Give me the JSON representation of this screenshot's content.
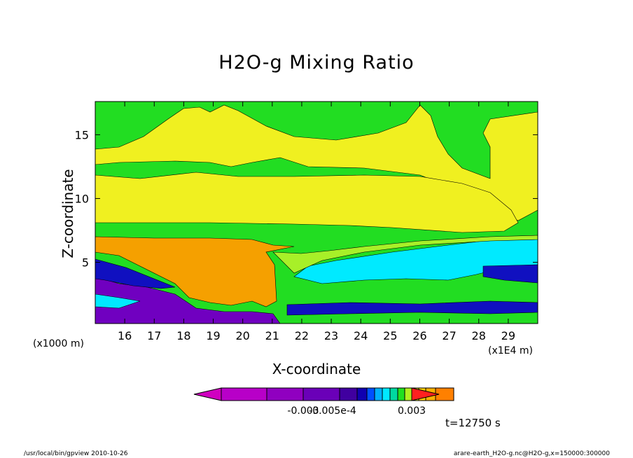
{
  "chart_data": {
    "type": "heatmap",
    "title": "H2O-g Mixing Ratio",
    "xlabel": "X-coordinate",
    "ylabel": "Z-coordinate",
    "x_units_left": "(x1000 m)",
    "x_units_right": "(x1E4 m)",
    "x_ticks": [
      "16",
      "17",
      "18",
      "19",
      "20",
      "21",
      "22",
      "23",
      "24",
      "25",
      "26",
      "27",
      "28",
      "29"
    ],
    "x_tick_values": [
      16,
      17,
      18,
      19,
      20,
      21,
      22,
      23,
      24,
      25,
      26,
      27,
      28,
      29
    ],
    "y_ticks": [
      "5",
      "10",
      "15"
    ],
    "y_tick_values": [
      5,
      10,
      15
    ],
    "xlim": [
      15.0,
      30.0
    ],
    "ylim": [
      0.2,
      17.6
    ],
    "time_label": "t=12750 s",
    "colorbar": {
      "tick_labels": [
        "-0.003",
        "-0.005e-4",
        "0.003"
      ],
      "colors": [
        "#d000c0",
        "#b800c8",
        "#9000c0",
        "#6a00b8",
        "#4000a0",
        "#1000b0",
        "#0050ff",
        "#00b0ff",
        "#00e8ff",
        "#00d8a0",
        "#20e020",
        "#b0f020",
        "#f0f020",
        "#ffd000",
        "#ffb000",
        "#ff8000",
        "#ff2020"
      ]
    },
    "regions": [
      {
        "name": "background",
        "color": "#22dd22"
      },
      {
        "name": "upper-band",
        "color": "#f0f020"
      },
      {
        "name": "mid-band",
        "color": "#f0f020"
      },
      {
        "name": "orange",
        "color": "#f5a000"
      },
      {
        "name": "cyan",
        "color": "#00eaff"
      },
      {
        "name": "light-green",
        "color": "#a8f028"
      },
      {
        "name": "purple",
        "color": "#7000c0"
      },
      {
        "name": "blue",
        "color": "#1010c0"
      }
    ]
  },
  "footer": {
    "left": "/usr/local/bin/gpview  2010-10-26",
    "right": "arare-earth_H2O-g.nc@H2O-g,x=150000:300000"
  }
}
